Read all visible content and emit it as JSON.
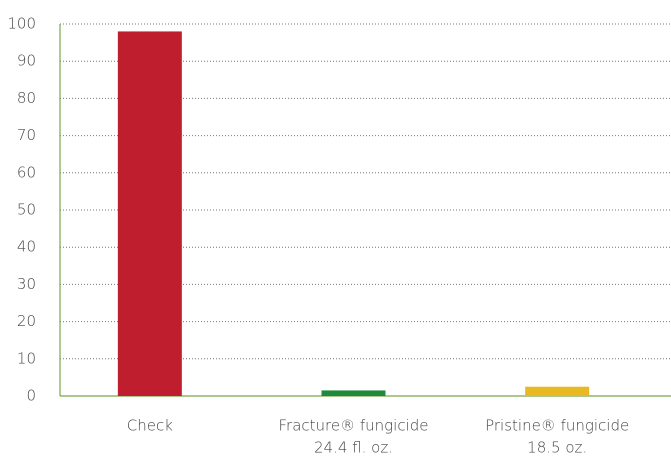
{
  "chart_data": {
    "type": "bar",
    "categories": [
      [
        "Check"
      ],
      [
        "Fracture® fungicide",
        "24.4 fl. oz."
      ],
      [
        "Pristine® fungicide",
        "18.5 oz."
      ]
    ],
    "values": [
      98,
      1.5,
      2.5
    ],
    "colors": [
      "#be1e2d",
      "#1e8a3c",
      "#e8b923"
    ],
    "ylim": [
      0,
      100
    ],
    "yticks": [
      0,
      10,
      20,
      30,
      40,
      50,
      60,
      70,
      80,
      90,
      100
    ],
    "grid": true,
    "axis_color": "#7aa84a"
  }
}
